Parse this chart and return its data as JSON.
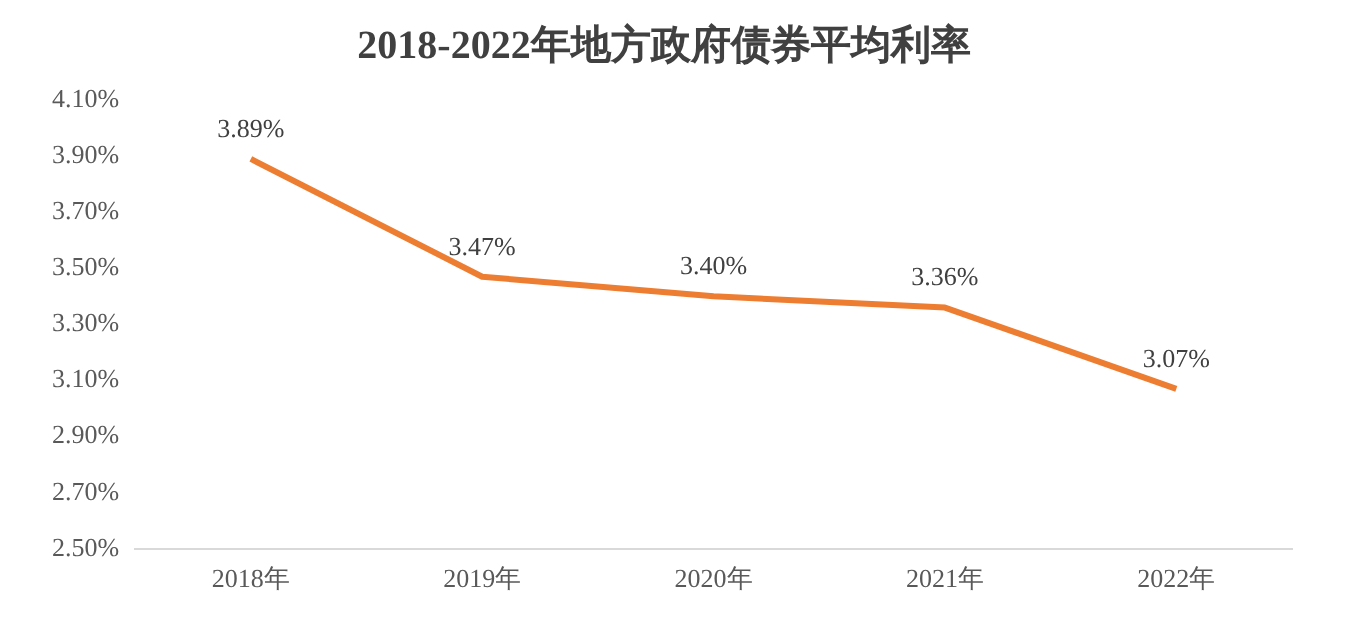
{
  "chart_data": {
    "type": "line",
    "title": "2018-2022年地方政府债券平均利率",
    "categories": [
      "2018年",
      "2019年",
      "2020年",
      "2021年",
      "2022年"
    ],
    "series": [
      {
        "color": "#ed7d31",
        "values": [
          3.89,
          3.47,
          3.4,
          3.36,
          3.07
        ],
        "value_labels": [
          "3.89%",
          "3.47%",
          "3.40%",
          "3.36%",
          "3.07%"
        ]
      }
    ],
    "ylim": [
      2.5,
      4.1
    ],
    "yticks": [
      {
        "value": 2.5,
        "label": "2.50%"
      },
      {
        "value": 2.7,
        "label": "2.70%"
      },
      {
        "value": 2.9,
        "label": "2.90%"
      },
      {
        "value": 3.1,
        "label": "3.10%"
      },
      {
        "value": 3.3,
        "label": "3.30%"
      },
      {
        "value": 3.5,
        "label": "3.50%"
      },
      {
        "value": 3.7,
        "label": "3.70%"
      },
      {
        "value": 3.9,
        "label": "3.90%"
      },
      {
        "value": 4.1,
        "label": "4.10%"
      }
    ],
    "grid": false,
    "legend": false,
    "marker": "none",
    "line_style": "solid"
  }
}
